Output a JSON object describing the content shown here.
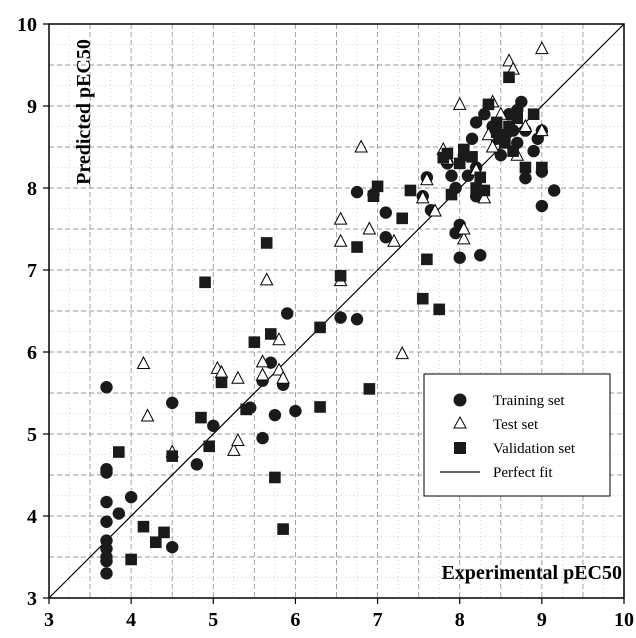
{
  "chart_data": {
    "type": "scatter",
    "xlabel": "Experimental pEC50",
    "ylabel": "Predicted pEC50",
    "xlim": [
      3,
      10
    ],
    "ylim": [
      3,
      10
    ],
    "xticks": [
      "3",
      "4",
      "5",
      "6",
      "7",
      "8",
      "9",
      "10"
    ],
    "yticks": [
      "3",
      "4",
      "5",
      "6",
      "7",
      "8",
      "9",
      "10"
    ],
    "grid": true,
    "legend_position": "bottom-right",
    "line": {
      "name": "Perfect fit",
      "from": [
        3,
        3
      ],
      "to": [
        10,
        10
      ]
    },
    "series": [
      {
        "name": "Training set",
        "marker": "circle",
        "points": [
          [
            3.7,
            5.57
          ],
          [
            3.7,
            4.57
          ],
          [
            3.7,
            4.53
          ],
          [
            3.7,
            4.17
          ],
          [
            3.7,
            3.93
          ],
          [
            3.7,
            3.7
          ],
          [
            3.7,
            3.6
          ],
          [
            3.7,
            3.5
          ],
          [
            3.7,
            3.45
          ],
          [
            3.7,
            3.3
          ],
          [
            3.85,
            4.03
          ],
          [
            4.0,
            4.23
          ],
          [
            4.5,
            5.38
          ],
          [
            4.5,
            3.62
          ],
          [
            4.8,
            4.63
          ],
          [
            5.0,
            5.1
          ],
          [
            5.45,
            5.32
          ],
          [
            5.6,
            4.95
          ],
          [
            5.6,
            5.65
          ],
          [
            5.7,
            5.87
          ],
          [
            5.75,
            5.23
          ],
          [
            5.85,
            5.6
          ],
          [
            5.9,
            6.47
          ],
          [
            6.0,
            5.28
          ],
          [
            6.55,
            6.42
          ],
          [
            6.75,
            6.4
          ],
          [
            6.75,
            7.95
          ],
          [
            6.95,
            7.92
          ],
          [
            7.1,
            7.7
          ],
          [
            7.1,
            7.4
          ],
          [
            7.55,
            7.9
          ],
          [
            7.6,
            8.13
          ],
          [
            7.65,
            7.73
          ],
          [
            7.85,
            8.3
          ],
          [
            7.9,
            8.15
          ],
          [
            7.95,
            8.0
          ],
          [
            7.95,
            7.45
          ],
          [
            8.0,
            7.55
          ],
          [
            8.0,
            7.15
          ],
          [
            8.05,
            8.4
          ],
          [
            8.1,
            8.15
          ],
          [
            8.15,
            8.6
          ],
          [
            8.2,
            8.8
          ],
          [
            8.2,
            8.25
          ],
          [
            8.2,
            7.9
          ],
          [
            8.25,
            7.18
          ],
          [
            8.3,
            8.9
          ],
          [
            8.4,
            8.75
          ],
          [
            8.45,
            8.6
          ],
          [
            8.5,
            8.4
          ],
          [
            8.55,
            8.65
          ],
          [
            8.6,
            8.9
          ],
          [
            8.65,
            8.7
          ],
          [
            8.7,
            8.95
          ],
          [
            8.7,
            8.55
          ],
          [
            8.75,
            9.05
          ],
          [
            8.8,
            8.7
          ],
          [
            8.8,
            8.12
          ],
          [
            8.9,
            8.45
          ],
          [
            8.95,
            8.6
          ],
          [
            9.0,
            8.7
          ],
          [
            9.0,
            8.2
          ],
          [
            9.0,
            7.78
          ],
          [
            9.15,
            7.97
          ]
        ]
      },
      {
        "name": "Test set",
        "marker": "triangle",
        "points": [
          [
            4.15,
            5.86
          ],
          [
            4.2,
            5.22
          ],
          [
            4.5,
            4.78
          ],
          [
            5.05,
            5.8
          ],
          [
            5.1,
            5.75
          ],
          [
            5.25,
            4.8
          ],
          [
            5.3,
            5.68
          ],
          [
            5.3,
            4.92
          ],
          [
            5.6,
            5.88
          ],
          [
            5.6,
            5.72
          ],
          [
            5.65,
            6.88
          ],
          [
            5.8,
            5.78
          ],
          [
            5.8,
            6.15
          ],
          [
            5.85,
            5.68
          ],
          [
            6.55,
            7.62
          ],
          [
            6.55,
            7.35
          ],
          [
            6.55,
            6.87
          ],
          [
            6.8,
            8.5
          ],
          [
            6.9,
            7.5
          ],
          [
            7.2,
            7.35
          ],
          [
            7.3,
            5.98
          ],
          [
            7.55,
            7.88
          ],
          [
            7.6,
            8.1
          ],
          [
            7.7,
            7.72
          ],
          [
            7.8,
            8.47
          ],
          [
            7.85,
            8.35
          ],
          [
            8.0,
            9.02
          ],
          [
            8.05,
            7.38
          ],
          [
            8.05,
            7.5
          ],
          [
            8.2,
            8.22
          ],
          [
            8.3,
            7.88
          ],
          [
            8.35,
            8.65
          ],
          [
            8.4,
            9.05
          ],
          [
            8.4,
            8.5
          ],
          [
            8.5,
            8.9
          ],
          [
            8.6,
            9.55
          ],
          [
            8.65,
            9.45
          ],
          [
            8.7,
            8.4
          ],
          [
            8.8,
            8.75
          ],
          [
            9.0,
            9.7
          ],
          [
            9.0,
            8.7
          ]
        ]
      },
      {
        "name": "Validation set",
        "marker": "square",
        "points": [
          [
            3.85,
            4.78
          ],
          [
            4.0,
            3.47
          ],
          [
            4.15,
            3.87
          ],
          [
            4.3,
            3.68
          ],
          [
            4.4,
            3.8
          ],
          [
            4.5,
            4.73
          ],
          [
            4.85,
            5.2
          ],
          [
            4.9,
            6.85
          ],
          [
            4.95,
            4.85
          ],
          [
            5.1,
            5.63
          ],
          [
            5.4,
            5.3
          ],
          [
            5.5,
            6.12
          ],
          [
            5.65,
            7.33
          ],
          [
            5.7,
            6.22
          ],
          [
            5.75,
            4.47
          ],
          [
            5.85,
            3.84
          ],
          [
            6.3,
            6.3
          ],
          [
            6.3,
            5.33
          ],
          [
            6.55,
            6.93
          ],
          [
            6.75,
            7.28
          ],
          [
            6.9,
            5.55
          ],
          [
            6.95,
            7.9
          ],
          [
            7.0,
            8.02
          ],
          [
            7.3,
            7.63
          ],
          [
            7.4,
            7.97
          ],
          [
            7.55,
            6.65
          ],
          [
            7.6,
            7.13
          ],
          [
            7.75,
            6.52
          ],
          [
            7.8,
            8.37
          ],
          [
            7.85,
            8.42
          ],
          [
            7.9,
            7.92
          ],
          [
            8.0,
            8.3
          ],
          [
            8.05,
            8.47
          ],
          [
            8.15,
            8.38
          ],
          [
            8.2,
            8.0
          ],
          [
            8.25,
            8.13
          ],
          [
            8.3,
            7.97
          ],
          [
            8.35,
            9.02
          ],
          [
            8.45,
            8.8
          ],
          [
            8.45,
            8.68
          ],
          [
            8.55,
            8.55
          ],
          [
            8.6,
            8.75
          ],
          [
            8.65,
            8.45
          ],
          [
            8.6,
            9.35
          ],
          [
            8.7,
            8.85
          ],
          [
            8.8,
            8.25
          ],
          [
            8.9,
            8.9
          ],
          [
            9.0,
            8.25
          ]
        ]
      }
    ]
  }
}
